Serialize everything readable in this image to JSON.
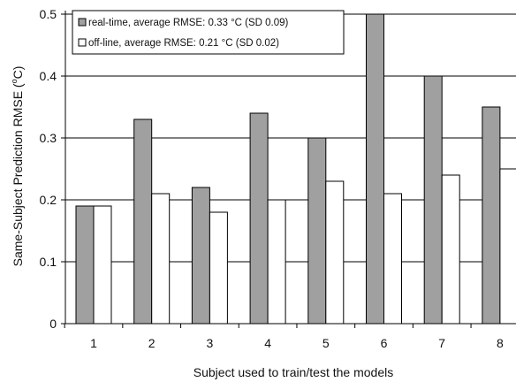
{
  "chart_data": {
    "type": "bar",
    "title": "",
    "xlabel": "Subject used to train/test the models",
    "ylabel": "Same-Subject Prediction RMSE (",
    "ylabel_unit": "o",
    "ylabel_tail": "C)",
    "categories": [
      "1",
      "2",
      "3",
      "4",
      "5",
      "6",
      "7",
      "8"
    ],
    "ylim": [
      0,
      0.5
    ],
    "yticks": [
      "0",
      "0.1",
      "0.2",
      "0.3",
      "0.4",
      "0.5"
    ],
    "grid": true,
    "legend_position": "top-left",
    "series": [
      {
        "name": "real-time, average RMSE: 0.33 °C (SD 0.09)",
        "color": "#a0a0a0",
        "values": [
          0.19,
          0.33,
          0.22,
          0.34,
          0.3,
          0.5,
          0.4,
          0.35
        ]
      },
      {
        "name": "off-line, average RMSE: 0.21 °C (SD 0.02)",
        "color": "#ffffff",
        "values": [
          0.19,
          0.21,
          0.18,
          0.2,
          0.23,
          0.21,
          0.24,
          0.25
        ]
      }
    ]
  }
}
